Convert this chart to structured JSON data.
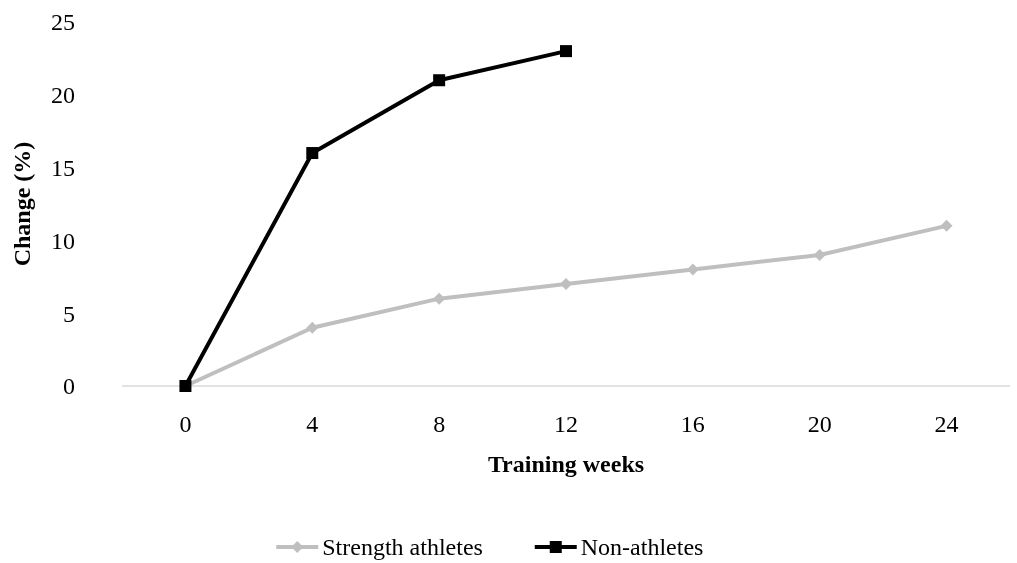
{
  "chart_data": {
    "type": "line",
    "xlabel": "Training weeks",
    "ylabel": "Change (%)",
    "categories": [
      "0",
      "4",
      "8",
      "12",
      "16",
      "20",
      "24"
    ],
    "series": [
      {
        "name": "Strength athletes",
        "color": "#bfbfbf",
        "marker": "diamond",
        "values": [
          0,
          4,
          6,
          7,
          8,
          9,
          11
        ]
      },
      {
        "name": "Non-athletes",
        "color": "#000000",
        "marker": "square",
        "values": [
          0,
          16,
          21,
          23,
          null,
          null,
          null
        ]
      }
    ],
    "ylim": [
      0,
      25
    ],
    "yticks": [
      0,
      5,
      10,
      15,
      20,
      25
    ],
    "grid": false,
    "legend": "bottom",
    "line_style": "solid"
  }
}
